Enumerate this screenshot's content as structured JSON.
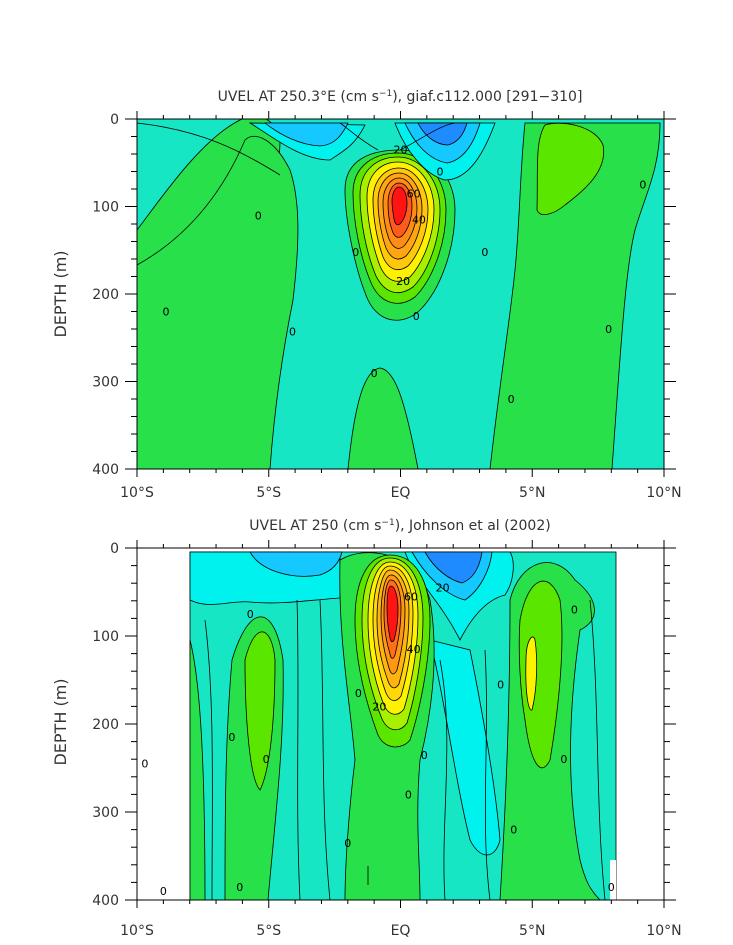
{
  "chart_data": [
    {
      "type": "contour",
      "title_prefix": "UVEL AT 250.3°E (cm s",
      "title_sup": "−1",
      "title_suffix": "), giaf.c112.000  [291−310]",
      "ylabel": "DEPTH (m)",
      "xlabel": "",
      "x_ticks": [
        "10°S",
        "5°S",
        "EQ",
        "5°N",
        "10°N"
      ],
      "x_range": [
        -10,
        10
      ],
      "y_ticks": [
        "0",
        "100",
        "200",
        "300",
        "400"
      ],
      "y_range": [
        0,
        400
      ],
      "y_inverted": true,
      "contour_labels": [
        {
          "text": "20",
          "lat": 0.0,
          "depth": 35
        },
        {
          "text": "60",
          "lat": 0.5,
          "depth": 85
        },
        {
          "text": "40",
          "lat": 0.7,
          "depth": 115
        },
        {
          "text": "20",
          "lat": 0.1,
          "depth": 185
        },
        {
          "text": "0",
          "lat": 1.5,
          "depth": 60
        },
        {
          "text": "0",
          "lat": -5.4,
          "depth": 110
        },
        {
          "text": "0",
          "lat": -1.7,
          "depth": 152
        },
        {
          "text": "0",
          "lat": 3.2,
          "depth": 152
        },
        {
          "text": "0",
          "lat": -8.9,
          "depth": 220
        },
        {
          "text": "0",
          "lat": -4.1,
          "depth": 243
        },
        {
          "text": "0",
          "lat": 0.6,
          "depth": 225
        },
        {
          "text": "0",
          "lat": 7.9,
          "depth": 240
        },
        {
          "text": "0",
          "lat": -1.0,
          "depth": 290
        },
        {
          "text": "0",
          "lat": 4.2,
          "depth": 320
        },
        {
          "text": "0",
          "lat": 9.2,
          "depth": 75
        }
      ]
    },
    {
      "type": "contour",
      "title_prefix": "UVEL AT 250 (cm s",
      "title_sup": "−1",
      "title_suffix": "), Johnson et al (2002)",
      "ylabel": "DEPTH (m)",
      "xlabel": "",
      "x_ticks": [
        "10°S",
        "5°S",
        "EQ",
        "5°N",
        "10°N"
      ],
      "x_range": [
        -10,
        10
      ],
      "y_ticks": [
        "0",
        "100",
        "200",
        "300",
        "400"
      ],
      "y_range": [
        0,
        400
      ],
      "y_inverted": true,
      "contour_labels": [
        {
          "text": "20",
          "lat": 1.6,
          "depth": 45
        },
        {
          "text": "60",
          "lat": 0.4,
          "depth": 55
        },
        {
          "text": "40",
          "lat": 0.5,
          "depth": 115
        },
        {
          "text": "20",
          "lat": -0.8,
          "depth": 180
        },
        {
          "text": "0",
          "lat": -5.7,
          "depth": 75
        },
        {
          "text": "0",
          "lat": -6.4,
          "depth": 215
        },
        {
          "text": "0",
          "lat": -5.1,
          "depth": 240
        },
        {
          "text": "0",
          "lat": -9.7,
          "depth": 245
        },
        {
          "text": "0",
          "lat": -1.6,
          "depth": 165
        },
        {
          "text": "0",
          "lat": 3.8,
          "depth": 155
        },
        {
          "text": "0",
          "lat": 6.6,
          "depth": 70
        },
        {
          "text": "0",
          "lat": 0.9,
          "depth": 235
        },
        {
          "text": "0",
          "lat": 0.3,
          "depth": 280
        },
        {
          "text": "0",
          "lat": 4.3,
          "depth": 320
        },
        {
          "text": "0",
          "lat": 6.2,
          "depth": 240
        },
        {
          "text": "0",
          "lat": -2.0,
          "depth": 335
        },
        {
          "text": "0",
          "lat": -6.1,
          "depth": 385
        },
        {
          "text": "0",
          "lat": -9.0,
          "depth": 390
        },
        {
          "text": "0",
          "lat": 8.0,
          "depth": 385
        }
      ]
    }
  ],
  "colors": {
    "cyan": "#21e8e8",
    "aqua": "#00f2ee",
    "teal": "#17e6c4",
    "light_green": "#28e04a",
    "green": "#5be600",
    "lime": "#a8f000",
    "yellow": "#fff200",
    "orange_light": "#ffc80a",
    "orange": "#ff8c14",
    "orange_dark": "#ff5a1e",
    "red": "#ff1414",
    "sky": "#15c8ff",
    "blue": "#1e8cff",
    "blue_dark": "#1464e6"
  }
}
